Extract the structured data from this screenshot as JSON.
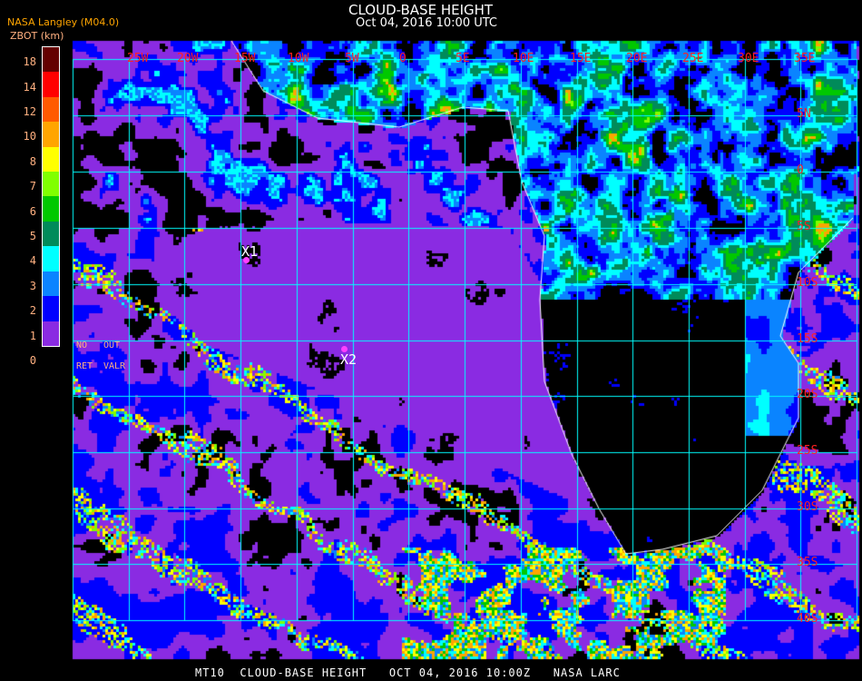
{
  "header": {
    "title": "CLOUD-BASE HEIGHT",
    "subtitle": "Oct 04, 2016 10:00 UTC",
    "organization": "NASA Langley (M04.0)",
    "units": "ZBOT (km)"
  },
  "legend": {
    "ticks": [
      "0",
      "1",
      "2",
      "3",
      "4",
      "5",
      "6",
      "7",
      "8",
      "10",
      "12",
      "14",
      "18"
    ],
    "colors": [
      "#8a2be2",
      "#0000ff",
      "#0a84ff",
      "#00ffff",
      "#008b5a",
      "#00c800",
      "#80ff00",
      "#ffff00",
      "#ffa500",
      "#ff5a00",
      "#ff0000",
      "#640000"
    ],
    "notes": [
      "NO",
      "OUT",
      "RET",
      "VALR"
    ]
  },
  "map": {
    "lon_labels": [
      "25W",
      "20W",
      "15W",
      "10W",
      "5W",
      "0",
      "5E",
      "10E",
      "15E",
      "20E",
      "25E",
      "30E",
      "35E"
    ],
    "lat_labels": [
      "5N",
      "0",
      "5S",
      "10S",
      "15S",
      "20S",
      "25S",
      "30S",
      "35S",
      "40S"
    ],
    "grid_color": "#00ffff",
    "coast_color": "#ffffff",
    "markers": [
      {
        "label": "X1"
      },
      {
        "label": "X2"
      }
    ],
    "marker_color": "#ff40ff"
  },
  "footer": "MT10  CLOUD-BASE HEIGHT   OCT 04, 2016 10:00Z   NASA LARC"
}
